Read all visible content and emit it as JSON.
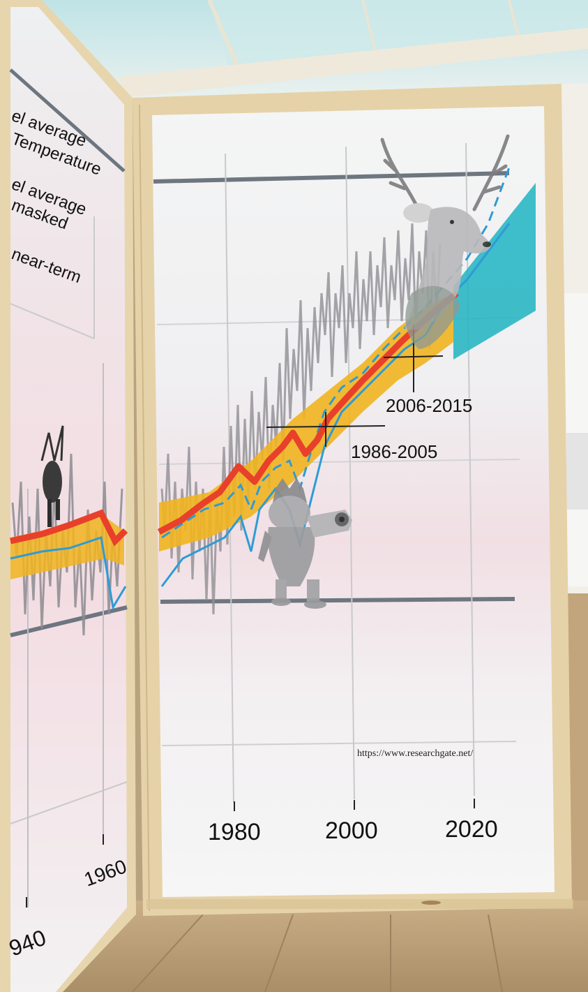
{
  "left_panel": {
    "legend_lines": [
      "el average",
      "Temperature",
      "el average",
      "masked",
      "near-term"
    ],
    "year_labels": [
      "1960",
      "940"
    ]
  },
  "right_panel": {
    "period_labels": [
      "2006-2015",
      "1986-2005"
    ],
    "source_url": "https://www.researchgate.net/",
    "year_labels": [
      "1980",
      "2000",
      "2020"
    ]
  },
  "colors": {
    "observed_red": "#e8402a",
    "model_blue": "#2e9bd6",
    "uncertainty_band": "#f1b41f",
    "projection_teal": "#1fb4c2",
    "wood_frame": "#e6d2a8",
    "floor": "#b79b73"
  },
  "illustrations": [
    "deer-head-icon",
    "monster-figure-icon",
    "deer-figure-icon"
  ]
}
